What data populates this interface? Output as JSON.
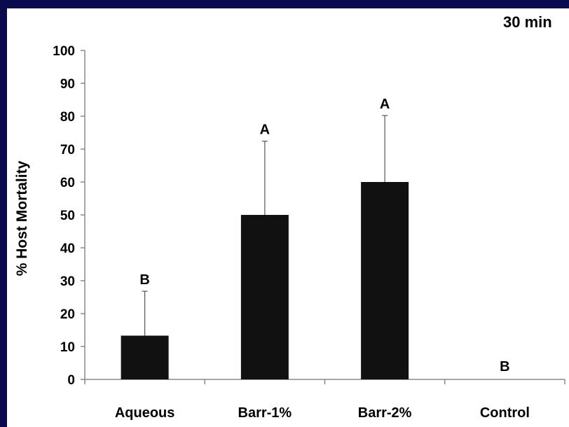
{
  "colors": {
    "frame": "#0a0a4e",
    "panel": "#ffffff",
    "bar": "#111111",
    "axis": "#888888",
    "text": "#000000"
  },
  "chart_data": {
    "type": "bar",
    "title": "30 min",
    "xlabel": "",
    "ylabel": "% Host Mortality",
    "ylim": [
      0,
      100
    ],
    "yticks": [
      0,
      10,
      20,
      30,
      40,
      50,
      60,
      70,
      80,
      90,
      100
    ],
    "categories": [
      "Aqueous",
      "Barr-1%",
      "Barr-2%",
      "Control"
    ],
    "values": [
      13.3,
      50,
      60,
      0
    ],
    "error_upper": [
      13.5,
      22.4,
      20.2,
      0
    ],
    "significance_labels": [
      "B",
      "A",
      "A",
      "B"
    ],
    "grid": false,
    "legend": "none"
  }
}
